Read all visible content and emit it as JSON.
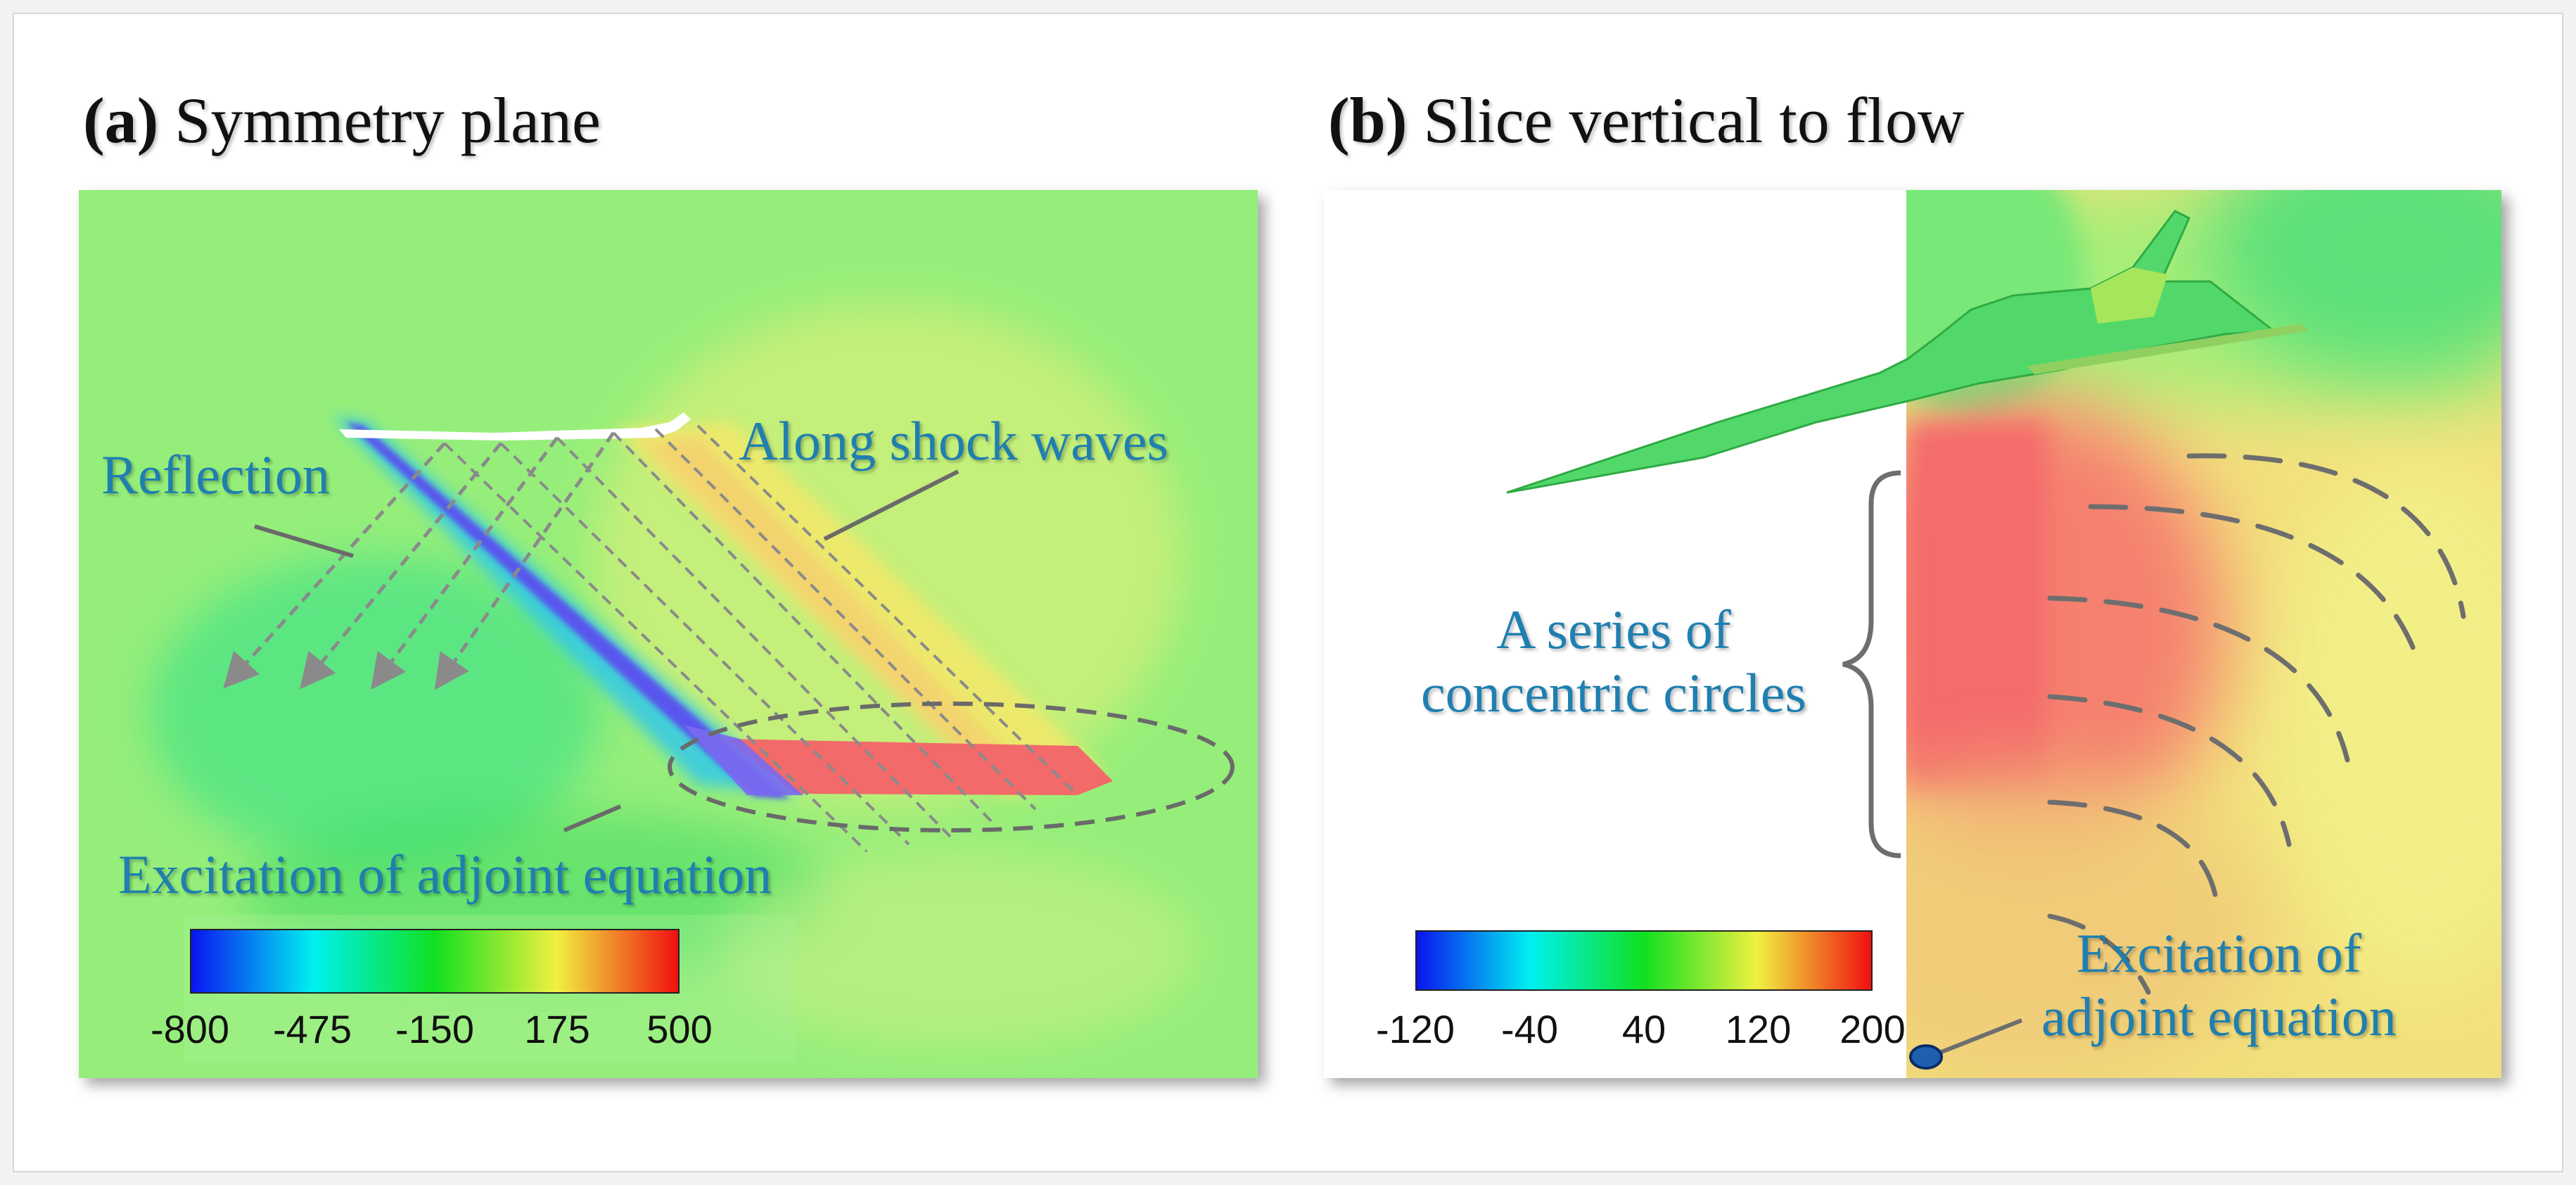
{
  "panel_a": {
    "label": "(a)",
    "title": "Symmetry plane",
    "annotations": {
      "reflection": "Reflection",
      "shock_waves": "Along shock waves",
      "excitation": "Excitation of adjoint equation"
    },
    "colorbar": {
      "ticks": [
        "-800",
        "-475",
        "-150",
        "175",
        "500"
      ],
      "colors": [
        "#0a14f0",
        "#00f0f0",
        "#10e020",
        "#f0f040",
        "#f01010"
      ]
    }
  },
  "panel_b": {
    "label": "(b)",
    "title": "Slice vertical to flow",
    "annotations": {
      "concentric_line1": "A series of",
      "concentric_line2": "concentric circles",
      "excitation_line1": "Excitation of",
      "excitation_line2": "adjoint equation"
    },
    "colorbar": {
      "ticks": [
        "-120",
        "-40",
        "40",
        "120",
        "200"
      ],
      "colors": [
        "#0a14f0",
        "#00f0f0",
        "#10e020",
        "#f0f040",
        "#f01010"
      ]
    }
  },
  "colors": {
    "field_green": "#96ee7a",
    "label_blue": "#1f7fb0",
    "marker_blue": "#1f5fb0"
  }
}
